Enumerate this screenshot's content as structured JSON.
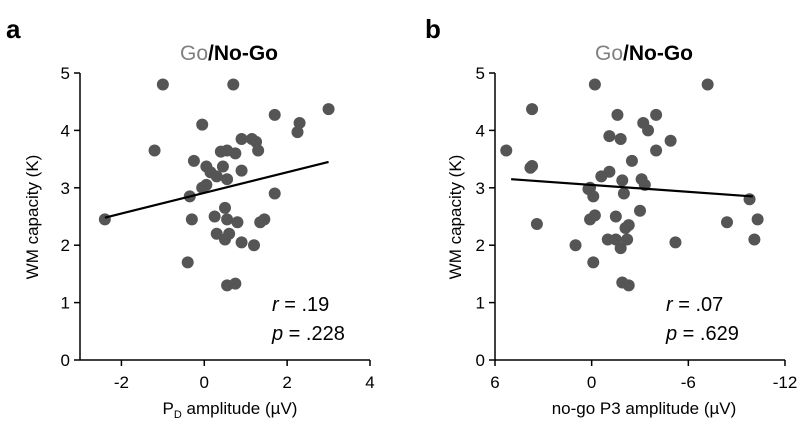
{
  "chart_data": [
    {
      "type": "scatter",
      "panel": "a",
      "title": {
        "go": "Go",
        "sep": "/",
        "nogo": "No-Go"
      },
      "xlabel": "P",
      "xlabel_sub": "D",
      "xlabel_suffix": " amplitude (µV)",
      "ylabel": "WM capacity (K)",
      "xlim": [
        -3,
        4
      ],
      "ylim": [
        0,
        5
      ],
      "xticks": [
        -2,
        0,
        2,
        4
      ],
      "xtick_labels": [
        "-2",
        "0",
        "2",
        "4"
      ],
      "yticks": [
        0,
        1,
        2,
        3,
        4,
        5
      ],
      "ytick_labels": [
        "0",
        "1",
        "2",
        "3",
        "4",
        "5"
      ],
      "stats": {
        "r_symbol": "r",
        "r_value": " = .19",
        "p_symbol": "p",
        "p_value": " = .228"
      },
      "fit_line": {
        "x": [
          -2.4,
          3.0
        ],
        "y": [
          2.48,
          3.45
        ]
      },
      "point_color": "#555555",
      "x": [
        -1.0,
        0.7,
        3.0,
        1.7,
        2.3,
        2.25,
        -1.2,
        -0.05,
        1.15,
        0.9,
        1.25,
        0.55,
        0.75,
        0.4,
        1.3,
        -0.25,
        0.05,
        0.15,
        0.9,
        0.45,
        0.3,
        0.55,
        0.05,
        -0.35,
        1.7,
        0.5,
        -0.05,
        -2.4,
        -0.3,
        0.25,
        0.55,
        1.45,
        1.35,
        0.8,
        0.3,
        0.6,
        0.9,
        1.2,
        0.5,
        -0.4,
        0.55,
        0.75
      ],
      "y": [
        4.8,
        4.8,
        4.37,
        4.27,
        4.13,
        3.97,
        3.65,
        4.1,
        3.85,
        3.85,
        3.8,
        3.65,
        3.6,
        3.63,
        3.65,
        3.47,
        3.37,
        3.27,
        3.3,
        3.37,
        3.2,
        3.15,
        3.05,
        2.85,
        2.9,
        2.65,
        3.0,
        2.45,
        2.45,
        2.5,
        2.45,
        2.45,
        2.4,
        2.4,
        2.2,
        2.2,
        2.05,
        2.0,
        2.1,
        1.7,
        1.3,
        1.33
      ]
    },
    {
      "type": "scatter",
      "panel": "b",
      "title": {
        "go": "Go",
        "sep": "/",
        "nogo": "No-Go"
      },
      "xlabel": "no-go P3 amplitude (µV)",
      "xlabel_sub": "",
      "xlabel_suffix": "",
      "ylabel": "WM capacity (K)",
      "xlim": [
        6,
        -12
      ],
      "ylim": [
        0,
        5
      ],
      "xticks": [
        6,
        0,
        -6,
        -12
      ],
      "xtick_labels": [
        "6",
        "0",
        "-6",
        "-12"
      ],
      "yticks": [
        0,
        1,
        2,
        3,
        4,
        5
      ],
      "ytick_labels": [
        "0",
        "1",
        "2",
        "3",
        "4",
        "5"
      ],
      "stats": {
        "r_symbol": "r",
        "r_value": " = .07",
        "p_symbol": "p",
        "p_value": " = .629"
      },
      "fit_line": {
        "x": [
          5.0,
          -10.0
        ],
        "y": [
          3.15,
          2.85
        ]
      },
      "point_color": "#555555",
      "x": [
        -0.2,
        -7.2,
        3.7,
        -1.6,
        5.3,
        3.8,
        3.7,
        -3.2,
        -4.0,
        -3.5,
        -4.0,
        -1.1,
        -4.9,
        -1.8,
        -1.1,
        -2.5,
        -0.6,
        0.1,
        -3.1,
        -1.9,
        -3.3,
        0.2,
        -2.0,
        -9.8,
        -0.1,
        -0.2,
        3.4,
        0.1,
        -1.5,
        -2.1,
        -3.0,
        -2.3,
        -8.4,
        -10.3,
        -1.0,
        -1.5,
        1.0,
        -1.8,
        -2.2,
        -5.2,
        -10.1,
        -0.1,
        -1.9,
        -2.3
      ],
      "y": [
        4.8,
        4.8,
        4.37,
        4.27,
        3.65,
        3.35,
        3.38,
        4.13,
        4.27,
        4.0,
        3.65,
        3.9,
        3.82,
        3.85,
        3.28,
        3.47,
        3.2,
        3.0,
        3.15,
        3.13,
        3.05,
        2.98,
        2.9,
        2.8,
        2.85,
        2.52,
        2.37,
        2.45,
        2.5,
        2.3,
        2.6,
        2.35,
        2.4,
        2.45,
        2.1,
        2.1,
        2.0,
        1.95,
        2.1,
        2.05,
        2.1,
        1.7,
        1.35,
        1.3
      ]
    }
  ]
}
